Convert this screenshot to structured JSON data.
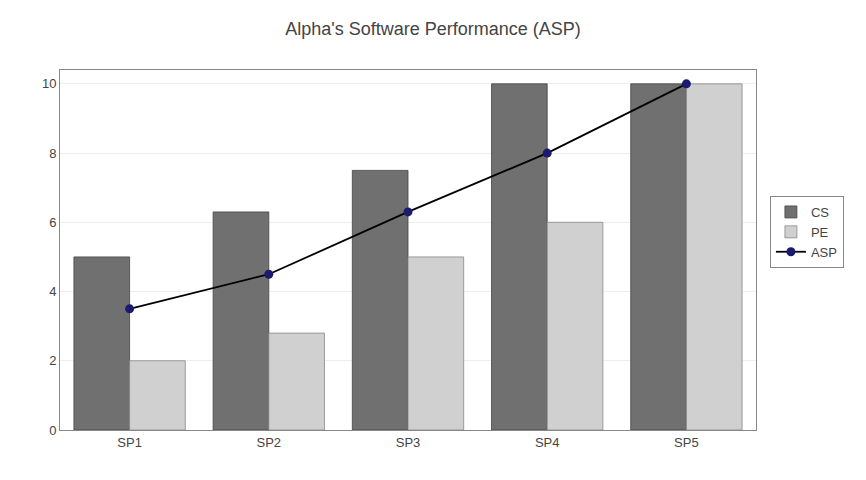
{
  "chart_data": {
    "type": "bar",
    "title": "Alpha's Software Performance (ASP)",
    "categories": [
      "SP1",
      "SP2",
      "SP3",
      "SP4",
      "SP5"
    ],
    "series": [
      {
        "name": "CS",
        "type": "bar",
        "color": "#707070",
        "values": [
          5,
          6.3,
          7.5,
          10,
          10
        ]
      },
      {
        "name": "PE",
        "type": "bar",
        "color": "#d0d0d0",
        "values": [
          2,
          2.8,
          5,
          6,
          10
        ]
      },
      {
        "name": "ASP",
        "type": "line",
        "color": "#1a1a6e",
        "marker": "circle",
        "values": [
          3.5,
          4.5,
          6.3,
          8,
          10
        ]
      }
    ],
    "ylim": [
      0,
      10.4
    ],
    "yticks": [
      0,
      2,
      4,
      6,
      8,
      10
    ],
    "grid": true,
    "legend": "right"
  }
}
